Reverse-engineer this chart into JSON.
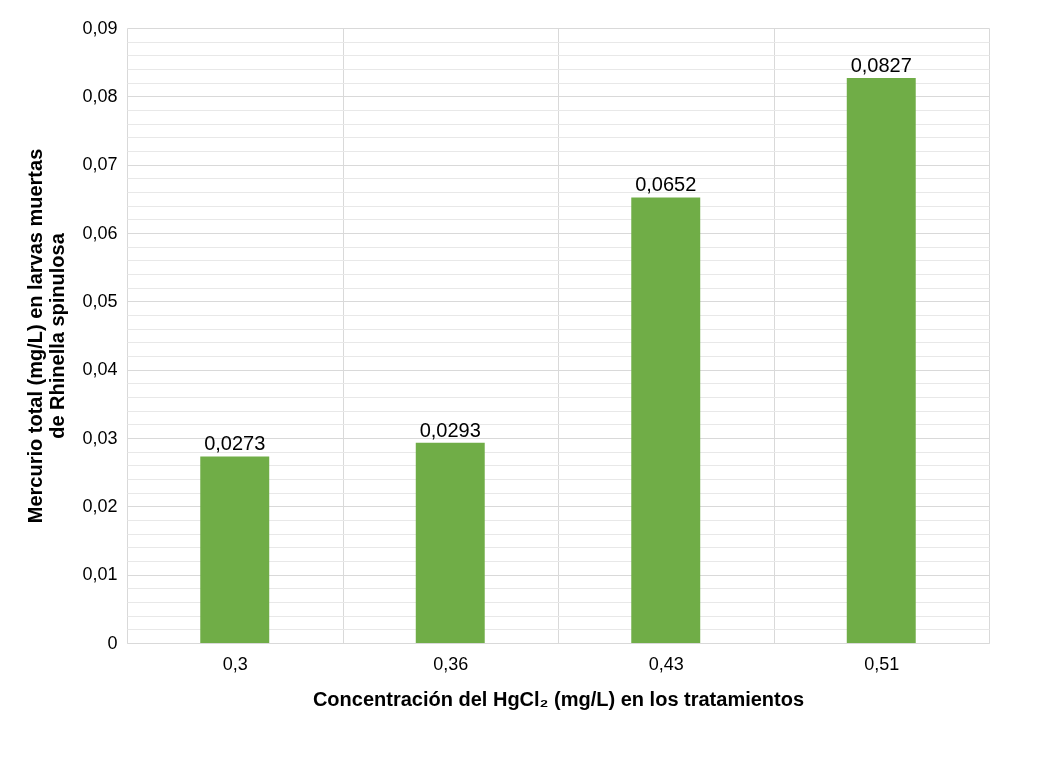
{
  "chart_data": {
    "type": "bar",
    "xlabel": "Concentración del HgCl₂ (mg/L) en los tratamientos",
    "ylabel": "Mercurio total (mg/L) en larvas muertas\nde Rhinella spinulosa",
    "categories": [
      "0,3",
      "0,36",
      "0,43",
      "0,51"
    ],
    "values": [
      0.0273,
      0.0293,
      0.0652,
      0.0827
    ],
    "value_labels": [
      "0,0273",
      "0,0293",
      "0,0652",
      "0,0827"
    ],
    "color": "#70ad47",
    "ylim": [
      0,
      0.09
    ],
    "yticks": [
      0,
      {
        "value": 0.002,
        "label": null
      },
      {
        "value": 0.004,
        "label": null
      },
      {
        "value": 0.006,
        "label": null
      },
      {
        "value": 0.008,
        "label": null
      },
      {
        "value": 0.01,
        "label": "0,01"
      },
      {
        "value": 0.012,
        "label": null
      },
      {
        "value": 0.014,
        "label": null
      },
      {
        "value": 0.016,
        "label": null
      },
      {
        "value": 0.018,
        "label": null
      },
      {
        "value": 0.02,
        "label": "0,02"
      },
      {
        "value": 0.022,
        "label": null
      },
      {
        "value": 0.024,
        "label": null
      },
      {
        "value": 0.026,
        "label": null
      },
      {
        "value": 0.028,
        "label": null
      },
      {
        "value": 0.03,
        "label": "0,03"
      },
      {
        "value": 0.032,
        "label": null
      },
      {
        "value": 0.034,
        "label": null
      },
      {
        "value": 0.036,
        "label": null
      },
      {
        "value": 0.038,
        "label": null
      },
      {
        "value": 0.04,
        "label": "0,04"
      },
      {
        "value": 0.042,
        "label": null
      },
      {
        "value": 0.044,
        "label": null
      },
      {
        "value": 0.046,
        "label": null
      },
      {
        "value": 0.048,
        "label": null
      },
      {
        "value": 0.05,
        "label": "0,05"
      },
      {
        "value": 0.052,
        "label": null
      },
      {
        "value": 0.054,
        "label": null
      },
      {
        "value": 0.056,
        "label": null
      },
      {
        "value": 0.058,
        "label": null
      },
      {
        "value": 0.06,
        "label": "0,06"
      },
      {
        "value": 0.062,
        "label": null
      },
      {
        "value": 0.064,
        "label": null
      },
      {
        "value": 0.066,
        "label": null
      },
      {
        "value": 0.068,
        "label": null
      },
      {
        "value": 0.07,
        "label": "0,07"
      },
      {
        "value": 0.072,
        "label": null
      },
      {
        "value": 0.074,
        "label": null
      },
      {
        "value": 0.076,
        "label": null
      },
      {
        "value": 0.078,
        "label": null
      },
      {
        "value": 0.08,
        "label": "0,08"
      },
      {
        "value": 0.082,
        "label": null
      },
      {
        "value": 0.084,
        "label": null
      },
      {
        "value": 0.086,
        "label": null
      },
      {
        "value": 0.088,
        "label": null
      },
      {
        "value": 0.09,
        "label": "0,09"
      }
    ],
    "grid": true
  }
}
